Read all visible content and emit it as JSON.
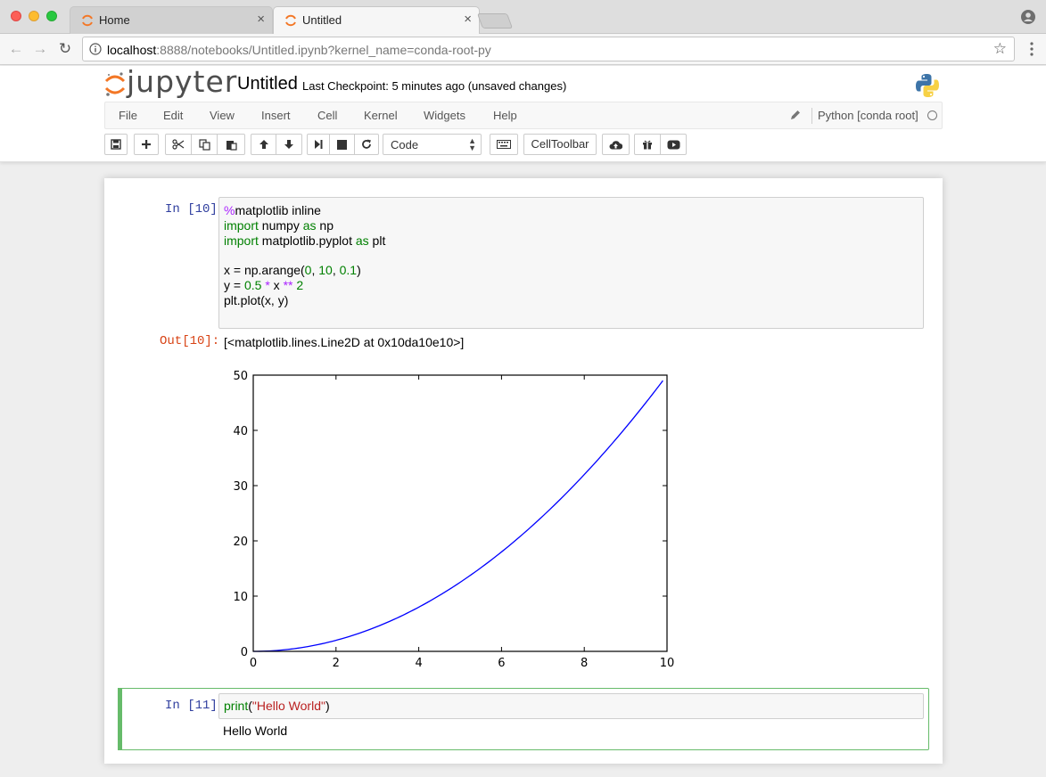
{
  "browser": {
    "tabs": [
      {
        "label": "Home",
        "close": "×",
        "active": false
      },
      {
        "label": "Untitled",
        "close": "×",
        "active": true
      }
    ],
    "address": {
      "host": "localhost",
      "rest": ":8888/notebooks/Untitled.ipynb?kernel_name=conda-root-py"
    },
    "bookmark_icon": "star-icon",
    "nav": {
      "back": "←",
      "forward": "→",
      "reload": "↻"
    }
  },
  "header": {
    "logo_text": "jupyter",
    "notebook_title": "Untitled",
    "checkpoint": "Last Checkpoint: 5 minutes ago (unsaved changes)"
  },
  "menu": {
    "items": [
      "File",
      "Edit",
      "View",
      "Insert",
      "Cell",
      "Kernel",
      "Widgets",
      "Help"
    ],
    "kernel_name": "Python [conda root]"
  },
  "toolbar": {
    "cell_type": "Code",
    "celltoolbar_label": "CellToolbar"
  },
  "cells": [
    {
      "in_prompt": "In [10]:",
      "out_prompt": "Out[10]:",
      "output_text": "[<matplotlib.lines.Line2D at 0x10da10e10>]"
    },
    {
      "in_prompt": "In [11]:",
      "output_text": "Hello World"
    }
  ],
  "chart_data": {
    "type": "line",
    "title": "",
    "xlabel": "",
    "ylabel": "",
    "xlim": [
      0,
      10
    ],
    "ylim": [
      0,
      50
    ],
    "xticks": [
      0,
      2,
      4,
      6,
      8,
      10
    ],
    "yticks": [
      0,
      10,
      20,
      30,
      40,
      50
    ],
    "color": "#0000ff",
    "series": [
      {
        "x": [
          0,
          1,
          2,
          3,
          4,
          5,
          6,
          7,
          8,
          9,
          9.9
        ],
        "y": [
          0,
          0.5,
          2,
          4.5,
          8,
          12.5,
          18,
          24.5,
          32,
          40.5,
          49.005
        ]
      }
    ]
  }
}
